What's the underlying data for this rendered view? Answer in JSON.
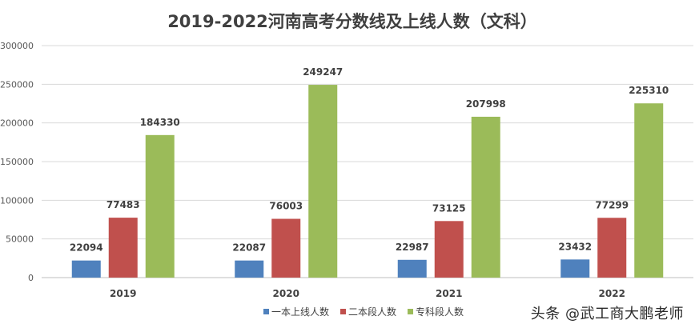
{
  "chart_data": {
    "type": "bar",
    "title": "2019-2022河南高考分数线及上线人数（文科）",
    "xlabel": "",
    "ylabel": "",
    "ylim": [
      0,
      300000
    ],
    "yticks": [
      0,
      50000,
      100000,
      150000,
      200000,
      250000,
      300000
    ],
    "grid": true,
    "legend_position": "bottom",
    "categories": [
      "2019",
      "2020",
      "2021",
      "2022"
    ],
    "series": [
      {
        "name": "一本上线人数",
        "color": "#4F81BD",
        "values": [
          22094,
          22087,
          22987,
          23432
        ]
      },
      {
        "name": "二本段人数",
        "color": "#C0504D",
        "values": [
          77483,
          76003,
          73125,
          77299
        ]
      },
      {
        "name": "专科段人数",
        "color": "#9BBB59",
        "values": [
          184330,
          249247,
          207998,
          225310
        ]
      }
    ]
  },
  "watermark": {
    "text": "头条 @武工商大鹏老师"
  }
}
